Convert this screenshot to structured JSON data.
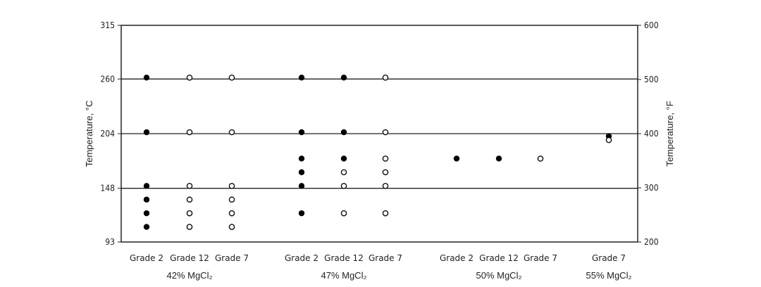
{
  "chart_data": {
    "type": "scatter",
    "ylabel_left": "Temperature, °C",
    "ylabel_right": "Temperature, °F",
    "ylim_c": [
      93,
      315
    ],
    "ylim_f": [
      200,
      600
    ],
    "left_ticks": [
      "315",
      "260",
      "204",
      "148",
      "93"
    ],
    "left_tick_values": [
      315,
      260,
      204,
      148,
      93
    ],
    "right_ticks": [
      "600",
      "500",
      "400",
      "300",
      "200"
    ],
    "right_tick_values": [
      600,
      500,
      400,
      300,
      200
    ],
    "gridlines_c": [
      260,
      204,
      148
    ],
    "groups": [
      {
        "label": "42% MgCl₂",
        "columns": [
          {
            "label": "Grade 2",
            "filled": [
              260,
              204,
              149,
              135,
              121,
              107
            ],
            "open": []
          },
          {
            "label": "Grade 12",
            "filled": [],
            "open": [
              260,
              204,
              149,
              135,
              121,
              107
            ]
          },
          {
            "label": "Grade 7",
            "filled": [],
            "open": [
              260,
              204,
              149,
              135,
              121,
              107
            ]
          }
        ]
      },
      {
        "label": "47% MgCl₂",
        "columns": [
          {
            "label": "Grade 2",
            "filled": [
              260,
              204,
              177,
              163,
              149,
              121
            ],
            "open": []
          },
          {
            "label": "Grade 12",
            "filled": [
              260,
              204,
              177
            ],
            "open": [
              163,
              149,
              121
            ]
          },
          {
            "label": "Grade 7",
            "filled": [],
            "open": [
              260,
              204,
              177,
              163,
              149,
              121
            ]
          }
        ]
      },
      {
        "label": "50% MgCl₂",
        "columns": [
          {
            "label": "Grade 2",
            "filled": [
              177
            ],
            "open": []
          },
          {
            "label": "Grade 12",
            "filled": [
              177
            ],
            "open": []
          },
          {
            "label": "Grade 7",
            "filled": [],
            "open": [
              177
            ]
          }
        ]
      },
      {
        "label": "55% MgCl₂",
        "columns": [
          {
            "label": "Grade 7",
            "filled": [
              200
            ],
            "open": [
              196
            ]
          }
        ]
      }
    ],
    "legend": "none",
    "grid": "horizontal"
  }
}
